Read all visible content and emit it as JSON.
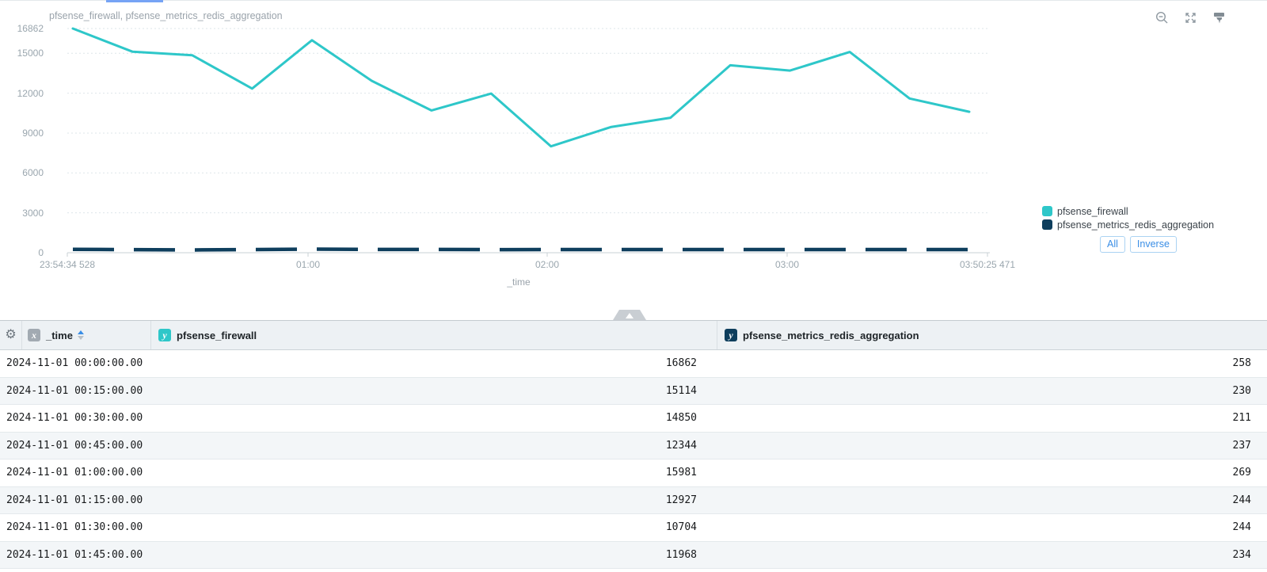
{
  "chart": {
    "title": "pfsense_firewall, pfsense_metrics_redis_aggregation",
    "y_ticks": [
      16862,
      15000,
      12000,
      9000,
      6000,
      3000,
      0
    ],
    "x_ticks": [
      "23:54:34 528",
      "01:00",
      "02:00",
      "03:00",
      "03:50:25 471"
    ],
    "xlabel": "_time",
    "legend": [
      {
        "label": "pfsense_firewall",
        "color": "#2ec7c9"
      },
      {
        "label": "pfsense_metrics_redis_aggregation",
        "color": "#0e3e5d"
      }
    ],
    "legend_buttons": {
      "all": "All",
      "inverse": "Inverse"
    },
    "toolbox_icons": [
      "zoom-out",
      "fullscreen",
      "brush"
    ],
    "colors": {
      "series1": "#2ec7c9",
      "series2": "#0e3e5d",
      "axis_text": "#9aa6ae",
      "button_blue": "#3a8ee6",
      "top_indicator": "#76a3f5"
    }
  },
  "chart_data": {
    "type": "line",
    "x": [
      "00:00",
      "00:15",
      "00:30",
      "00:45",
      "01:00",
      "01:15",
      "01:30",
      "01:45",
      "02:00",
      "02:15",
      "02:30",
      "02:45",
      "03:00",
      "03:15",
      "03:30",
      "03:45"
    ],
    "series": [
      {
        "name": "pfsense_firewall",
        "color": "#2ec7c9",
        "style": "solid",
        "values": [
          16862,
          15114,
          14850,
          12344,
          15981,
          12927,
          10704,
          11968,
          8000,
          9450,
          10150,
          14100,
          13700,
          15100,
          11600,
          10600
        ]
      },
      {
        "name": "pfsense_metrics_redis_aggregation",
        "color": "#0e3e5d",
        "style": "dashed",
        "values": [
          258,
          230,
          211,
          237,
          269,
          244,
          244,
          234,
          240,
          240,
          240,
          240,
          240,
          240,
          240,
          240
        ]
      }
    ],
    "title": "pfsense_firewall, pfsense_metrics_redis_aggregation",
    "xlabel": "_time",
    "ylabel": "",
    "ylim": [
      0,
      16862
    ],
    "x_range": [
      "23:54:34 528",
      "03:50:25 471"
    ],
    "grid": "horizontal-dotted",
    "legend_position": "right"
  },
  "table": {
    "columns": [
      {
        "badge": "x",
        "badge_color": "#a2aab2",
        "label": "_time",
        "sorted": "asc"
      },
      {
        "badge": "y",
        "badge_color": "#2ec7c9",
        "label": "pfsense_firewall",
        "sorted": ""
      },
      {
        "badge": "y",
        "badge_color": "#0e3e5d",
        "label": "pfsense_metrics_redis_aggregation",
        "sorted": ""
      }
    ],
    "rows": [
      [
        "2024-11-01 00:00:00.00",
        "16862",
        "258"
      ],
      [
        "2024-11-01 00:15:00.00",
        "15114",
        "230"
      ],
      [
        "2024-11-01 00:30:00.00",
        "14850",
        "211"
      ],
      [
        "2024-11-01 00:45:00.00",
        "12344",
        "237"
      ],
      [
        "2024-11-01 01:00:00.00",
        "15981",
        "269"
      ],
      [
        "2024-11-01 01:15:00.00",
        "12927",
        "244"
      ],
      [
        "2024-11-01 01:30:00.00",
        "10704",
        "244"
      ],
      [
        "2024-11-01 01:45:00.00",
        "11968",
        "234"
      ]
    ]
  }
}
